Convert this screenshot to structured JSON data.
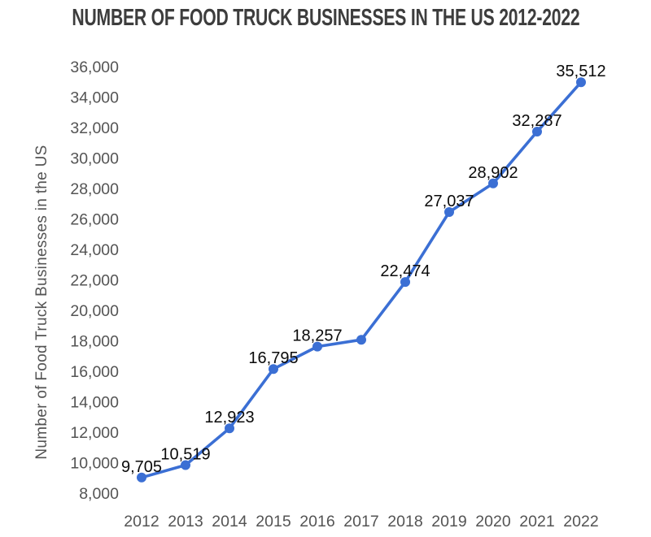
{
  "title": "NUMBER OF FOOD TRUCK BUSINESSES IN THE US 2012-2022",
  "chart_data": {
    "type": "line",
    "title": "NUMBER OF FOOD TRUCK BUSINESSES IN THE US 2012-2022",
    "xlabel": "",
    "ylabel": "Number of Food Truck Businesses in the US",
    "categories": [
      "2012",
      "2013",
      "2014",
      "2015",
      "2016",
      "2017",
      "2018",
      "2019",
      "2020",
      "2021",
      "2022"
    ],
    "values": [
      9705,
      10519,
      12923,
      16795,
      18257,
      18700,
      22474,
      27037,
      28902,
      32287,
      35512
    ],
    "data_labels": [
      "9,705",
      "10,519",
      "12,923",
      "16,795",
      "18,257",
      "",
      "22,474",
      "27,037",
      "28,902",
      "32,287",
      "35,512"
    ],
    "ylim": [
      8000,
      36000
    ],
    "ytick_interval": 2000,
    "ytick_labels_top_to_bottom": [
      "36,000",
      "34,000",
      "32,000",
      "30,000",
      "28,000",
      "26,000",
      "24,000",
      "22,000",
      "20,000",
      "18,000",
      "16,000",
      "14,000",
      "12,000",
      "10,000",
      "8,000"
    ],
    "grid": false,
    "legend": "none",
    "axis_lines": false,
    "colors": {
      "line": "#3B6FD4",
      "point": "#3B6FD4",
      "title_text": "#3D3D3D",
      "tick_text": "#545454",
      "data_label_text": "#0A0A0A",
      "background": "#FFFFFF"
    }
  }
}
